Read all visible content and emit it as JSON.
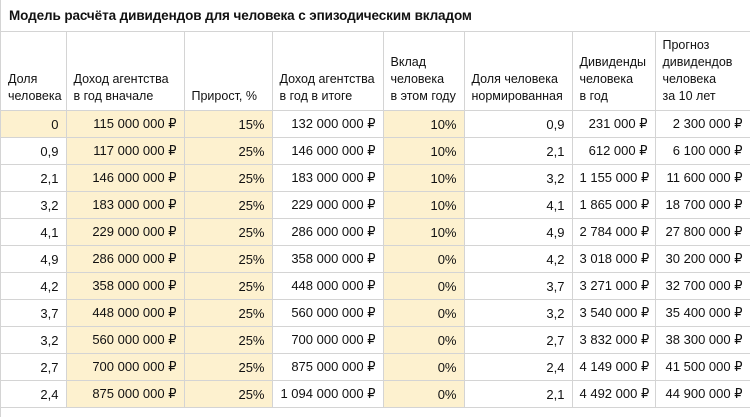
{
  "title": "Модель расчёта дивидендов для человека с эпизодическим вкладом",
  "colors": {
    "highlight": "#fdf1cf",
    "grid": "#d4d4d4"
  },
  "headers": [
    [
      "Доля",
      "человека"
    ],
    [
      "Доход агентства",
      "в год вначале"
    ],
    [
      "Прирост, %"
    ],
    [
      "Доход агентства",
      "в год в итоге"
    ],
    [
      "Вклад",
      "человека",
      "в этом году"
    ],
    [
      "Доля человека",
      "нормированная"
    ],
    [
      "Дивиденды",
      "человека",
      "в год"
    ],
    [
      "Прогноз",
      "дивидендов",
      "человека",
      "за 10 лет"
    ]
  ],
  "rows": [
    [
      "0",
      "115 000 000 ₽",
      "15%",
      "132 000 000 ₽",
      "10%",
      "0,9",
      "231 000 ₽",
      "2 300 000 ₽"
    ],
    [
      "0,9",
      "117 000 000 ₽",
      "25%",
      "146 000 000 ₽",
      "10%",
      "2,1",
      "612 000 ₽",
      "6 100 000 ₽"
    ],
    [
      "2,1",
      "146 000 000 ₽",
      "25%",
      "183 000 000 ₽",
      "10%",
      "3,2",
      "1 155 000 ₽",
      "11 600 000 ₽"
    ],
    [
      "3,2",
      "183 000 000 ₽",
      "25%",
      "229 000 000 ₽",
      "10%",
      "4,1",
      "1 865 000 ₽",
      "18 700 000 ₽"
    ],
    [
      "4,1",
      "229 000 000 ₽",
      "25%",
      "286 000 000 ₽",
      "10%",
      "4,9",
      "2 784 000 ₽",
      "27 800 000 ₽"
    ],
    [
      "4,9",
      "286 000 000 ₽",
      "25%",
      "358 000 000 ₽",
      "0%",
      "4,2",
      "3 018 000 ₽",
      "30 200 000 ₽"
    ],
    [
      "4,2",
      "358 000 000 ₽",
      "25%",
      "448 000 000 ₽",
      "0%",
      "3,7",
      "3 271 000 ₽",
      "32 700 000 ₽"
    ],
    [
      "3,7",
      "448 000 000 ₽",
      "25%",
      "560 000 000 ₽",
      "0%",
      "3,2",
      "3 540 000 ₽",
      "35 400 000 ₽"
    ],
    [
      "3,2",
      "560 000 000 ₽",
      "25%",
      "700 000 000 ₽",
      "0%",
      "2,7",
      "3 832 000 ₽",
      "38 300 000 ₽"
    ],
    [
      "2,7",
      "700 000 000 ₽",
      "25%",
      "875 000 000 ₽",
      "0%",
      "2,4",
      "4 149 000 ₽",
      "41 500 000 ₽"
    ],
    [
      "2,4",
      "875 000 000 ₽",
      "25%",
      "1 094 000 000 ₽",
      "0%",
      "2,1",
      "4 492 000 ₽",
      "44 900 000 ₽"
    ]
  ]
}
